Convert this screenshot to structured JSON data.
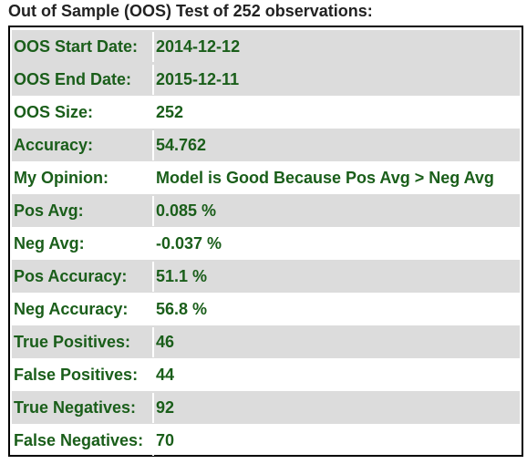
{
  "heading": "Out of Sample (OOS) Test of 252 observations:",
  "rows": [
    {
      "label": "OOS Start Date:",
      "value": "2014-12-12"
    },
    {
      "label": "OOS End Date:",
      "value": "2015-12-11"
    },
    {
      "label": "OOS Size:",
      "value": "252"
    },
    {
      "label": "Accuracy:",
      "value": "54.762"
    },
    {
      "label": "My Opinion:",
      "value": "Model is Good Because Pos Avg > Neg Avg"
    },
    {
      "label": "Pos Avg:",
      "value": "0.085 %"
    },
    {
      "label": "Neg Avg:",
      "value": "-0.037 %"
    },
    {
      "label": "Pos Accuracy:",
      "value": "51.1 %"
    },
    {
      "label": "Neg Accuracy:",
      "value": "56.8 %"
    },
    {
      "label": "True Positives:",
      "value": "46"
    },
    {
      "label": "False Positives:",
      "value": "44"
    },
    {
      "label": "True Negatives:",
      "value": "92"
    },
    {
      "label": "False Negatives:",
      "value": "70"
    }
  ],
  "colors": {
    "text_green": "#1a5e1a",
    "row_shade": "#dcdcdc",
    "heading_text": "#222222",
    "border": "#000000"
  }
}
